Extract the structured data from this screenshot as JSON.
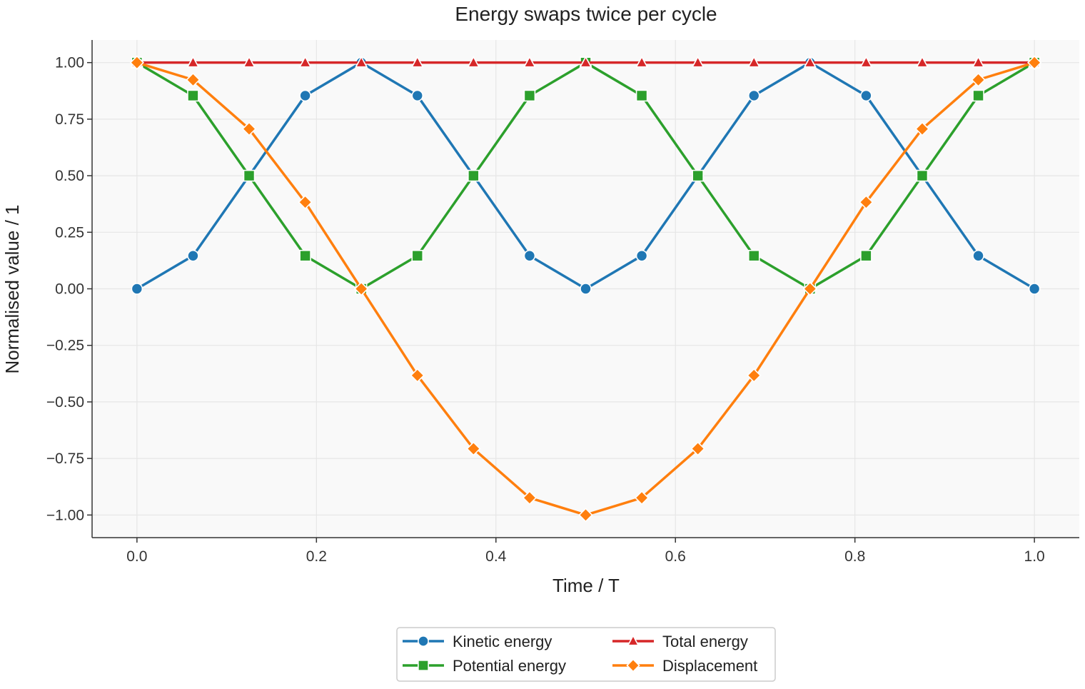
{
  "chart_data": {
    "type": "line",
    "title": "Energy swaps twice per cycle",
    "xlabel": "Time / T",
    "ylabel": "Normalised value / 1",
    "xlim": [
      -0.05,
      1.05
    ],
    "ylim": [
      -1.1,
      1.1
    ],
    "xticks": [
      0.0,
      0.2,
      0.4,
      0.6,
      0.8,
      1.0
    ],
    "xtick_labels": [
      "0.0",
      "0.2",
      "0.4",
      "0.6",
      "0.8",
      "1.0"
    ],
    "yticks": [
      1.0,
      0.75,
      0.5,
      0.25,
      0.0,
      -0.25,
      -0.5,
      -0.75,
      -1.0
    ],
    "ytick_labels": [
      "1.00",
      "0.75",
      "0.50",
      "0.25",
      "0.00",
      "−0.25",
      "−0.50",
      "−0.75",
      "−1.00"
    ],
    "grid": true,
    "legend_position": "bottom-center",
    "background": "#f9f9f9",
    "x": [
      0.0,
      0.0625,
      0.125,
      0.1875,
      0.25,
      0.3125,
      0.375,
      0.4375,
      0.5,
      0.5625,
      0.625,
      0.6875,
      0.75,
      0.8125,
      0.875,
      0.9375,
      1.0
    ],
    "series": [
      {
        "name": "Kinetic energy",
        "color": "#1f77b4",
        "marker": "circle",
        "values": [
          0.0,
          0.146,
          0.5,
          0.854,
          1.0,
          0.854,
          0.5,
          0.146,
          0.0,
          0.146,
          0.5,
          0.854,
          1.0,
          0.854,
          0.5,
          0.146,
          0.0
        ]
      },
      {
        "name": "Potential energy",
        "color": "#2ca02c",
        "marker": "square",
        "values": [
          1.0,
          0.854,
          0.5,
          0.146,
          0.0,
          0.146,
          0.5,
          0.854,
          1.0,
          0.854,
          0.5,
          0.146,
          0.0,
          0.146,
          0.5,
          0.854,
          1.0
        ]
      },
      {
        "name": "Total energy",
        "color": "#d62728",
        "marker": "triangle",
        "values": [
          1.0,
          1.0,
          1.0,
          1.0,
          1.0,
          1.0,
          1.0,
          1.0,
          1.0,
          1.0,
          1.0,
          1.0,
          1.0,
          1.0,
          1.0,
          1.0,
          1.0
        ]
      },
      {
        "name": "Displacement",
        "color": "#ff7f0e",
        "marker": "diamond",
        "values": [
          1.0,
          0.924,
          0.707,
          0.383,
          0.0,
          -0.383,
          -0.707,
          -0.924,
          -1.0,
          -0.924,
          -0.707,
          -0.383,
          0.0,
          0.383,
          0.707,
          0.924,
          1.0
        ]
      }
    ]
  }
}
